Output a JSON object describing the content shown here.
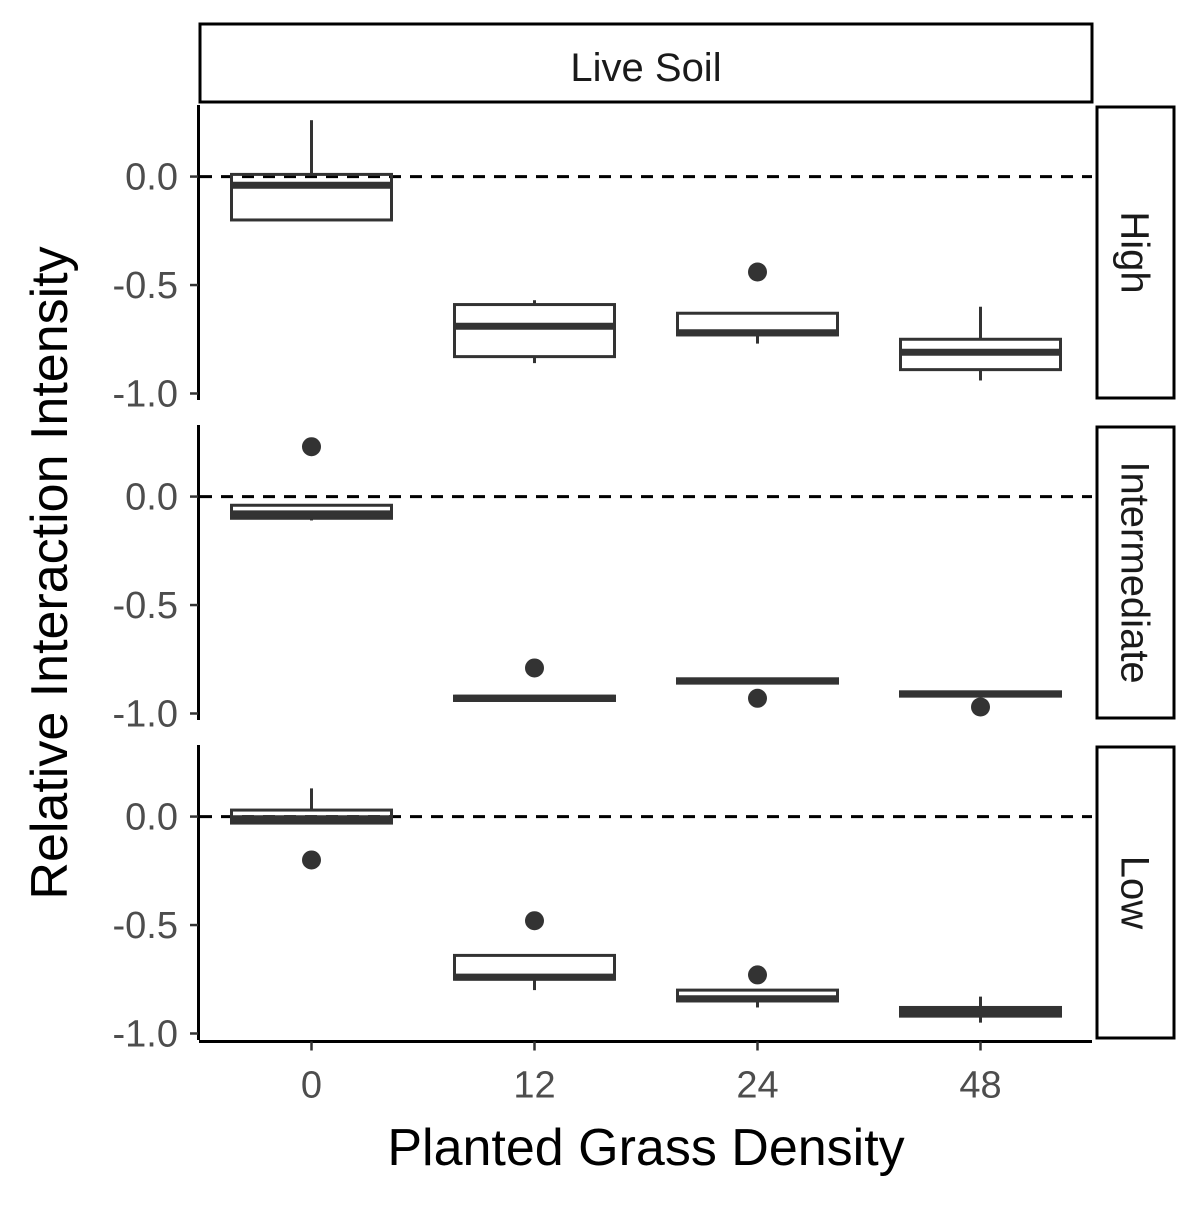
{
  "chart_data": {
    "type": "boxplot",
    "column_strip": "Live Soil",
    "xlabel": "Planted Grass Density",
    "ylabel": "Relative Interaction Intensity",
    "categories": [
      "0",
      "12",
      "24",
      "48"
    ],
    "ylim": [
      -1.03,
      0.33
    ],
    "y_ticks": [
      {
        "value": 0.0,
        "label": "0.0"
      },
      {
        "value": -0.5,
        "label": "-0.5"
      },
      {
        "value": -1.0,
        "label": "-1.0"
      }
    ],
    "reference_line": {
      "y": 0,
      "style": "dashed"
    },
    "colors": {
      "box_stroke": "#333333",
      "fill": "#ffffff",
      "ref_line": "#000000"
    },
    "panels": [
      {
        "label": "High",
        "boxes": [
          {
            "category": "0",
            "min": -0.2,
            "q1": -0.2,
            "median": -0.04,
            "q3": 0.01,
            "max": 0.26,
            "outliers": []
          },
          {
            "category": "12",
            "min": -0.86,
            "q1": -0.83,
            "median": -0.69,
            "q3": -0.59,
            "max": -0.57,
            "outliers": []
          },
          {
            "category": "24",
            "min": -0.77,
            "q1": -0.73,
            "median": -0.72,
            "q3": -0.63,
            "max": -0.63,
            "outliers": [
              -0.44
            ]
          },
          {
            "category": "48",
            "min": -0.94,
            "q1": -0.89,
            "median": -0.81,
            "q3": -0.75,
            "max": -0.6,
            "outliers": []
          }
        ]
      },
      {
        "label": "Intermediate",
        "boxes": [
          {
            "category": "0",
            "min": -0.11,
            "q1": -0.1,
            "median": -0.08,
            "q3": -0.04,
            "max": -0.04,
            "outliers": [
              0.23
            ]
          },
          {
            "category": "12",
            "min": -0.94,
            "q1": -0.94,
            "median": -0.93,
            "q3": -0.92,
            "max": -0.92,
            "outliers": [
              -0.79
            ]
          },
          {
            "category": "24",
            "min": -0.86,
            "q1": -0.86,
            "median": -0.85,
            "q3": -0.84,
            "max": -0.84,
            "outliers": [
              -0.93
            ]
          },
          {
            "category": "48",
            "min": -0.92,
            "q1": -0.92,
            "median": -0.91,
            "q3": -0.9,
            "max": -0.9,
            "outliers": [
              -0.97
            ]
          }
        ]
      },
      {
        "label": "Low",
        "boxes": [
          {
            "category": "0",
            "min": -0.03,
            "q1": -0.03,
            "median": -0.01,
            "q3": 0.03,
            "max": 0.13,
            "outliers": [
              -0.2
            ]
          },
          {
            "category": "12",
            "min": -0.8,
            "q1": -0.75,
            "median": -0.74,
            "q3": -0.64,
            "max": -0.64,
            "outliers": [
              -0.48
            ]
          },
          {
            "category": "24",
            "min": -0.88,
            "q1": -0.85,
            "median": -0.84,
            "q3": -0.8,
            "max": -0.8,
            "outliers": [
              -0.73
            ]
          },
          {
            "category": "48",
            "min": -0.95,
            "q1": -0.92,
            "median": -0.9,
            "q3": -0.88,
            "max": -0.83,
            "outliers": []
          }
        ]
      }
    ]
  }
}
